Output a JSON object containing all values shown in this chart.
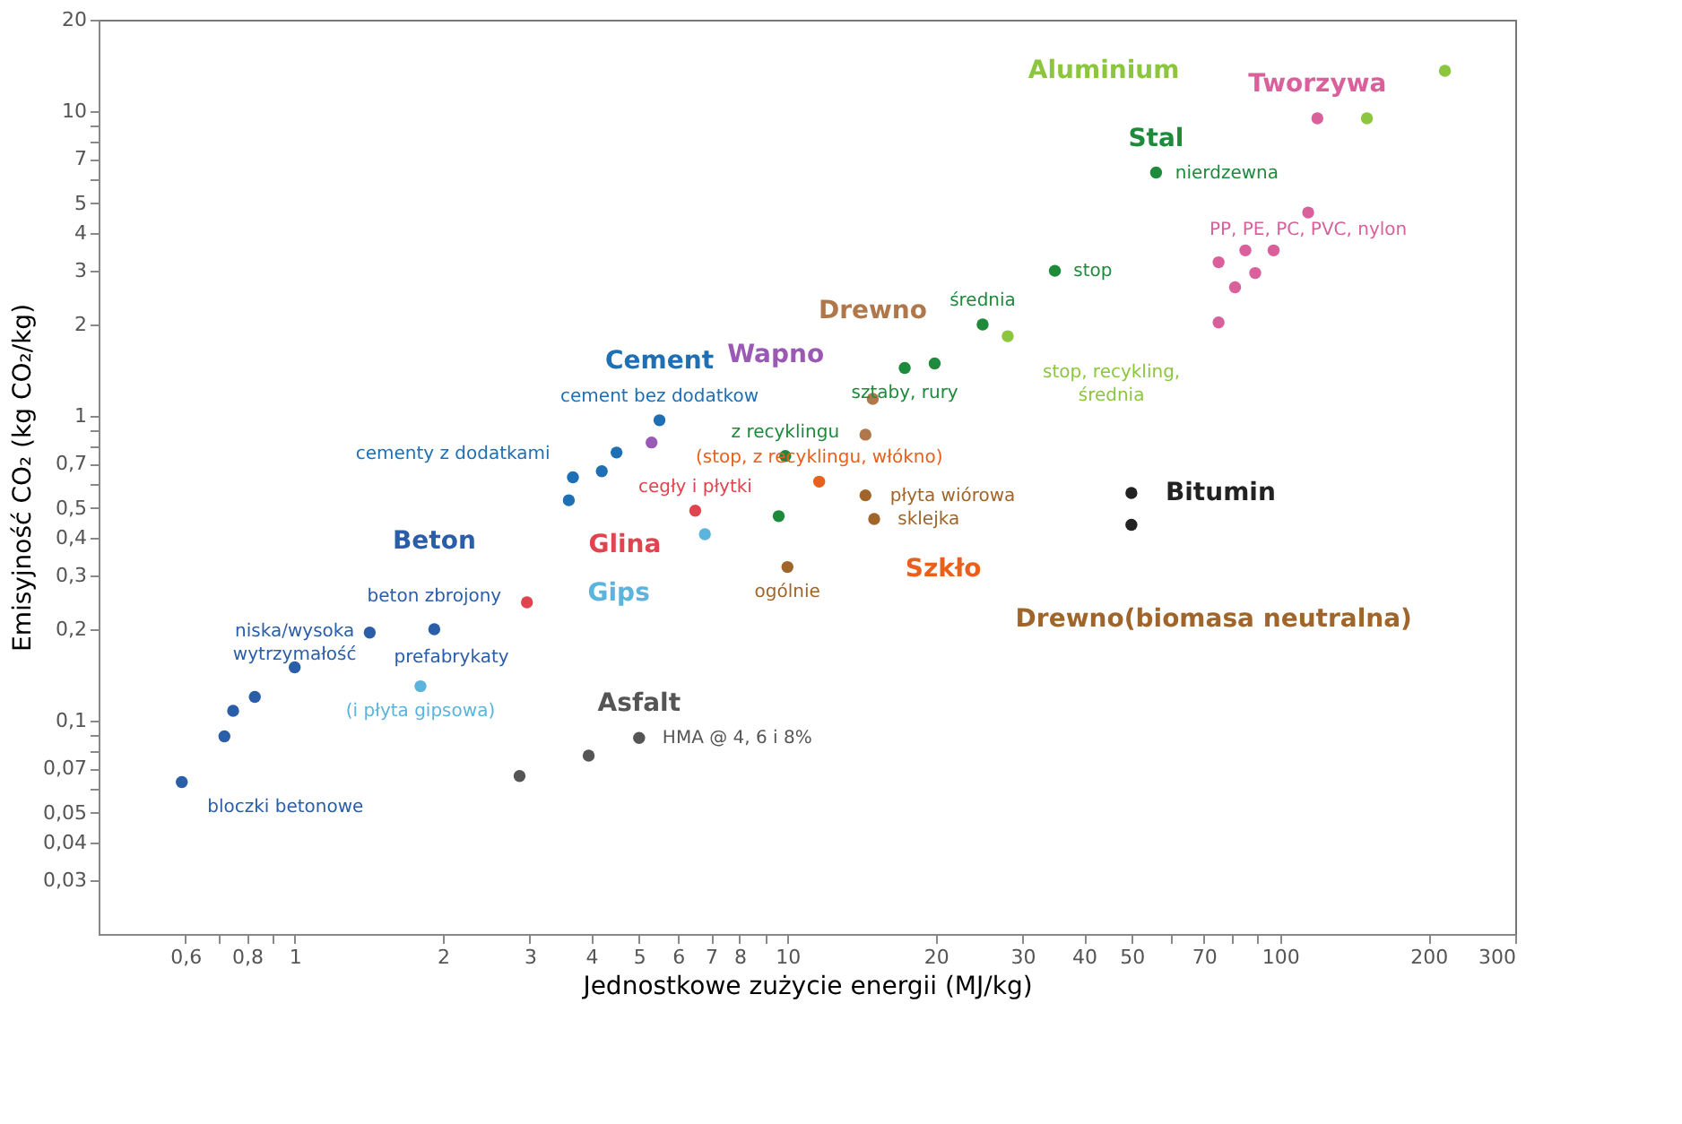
{
  "chart_data": {
    "type": "scatter",
    "xlabel": "Jednostkowe zużycie energii (MJ/kg)",
    "ylabel": "Emisyjność CO₂ (kg CO₂/kg)",
    "log": "xy",
    "grid": false,
    "legend": false,
    "marker": "circle",
    "xlim": [
      0.4,
      300
    ],
    "ylim": [
      0.02,
      20
    ],
    "xticks": [
      {
        "value": 0.6,
        "label": "0,6"
      },
      {
        "value": 0.7,
        "label": null
      },
      {
        "value": 0.8,
        "label": "0,8"
      },
      {
        "value": 0.9,
        "label": null
      },
      1,
      2,
      3,
      4,
      5,
      6,
      7,
      8,
      {
        "value": 9,
        "label": null
      },
      10,
      20,
      30,
      40,
      50,
      {
        "value": 60,
        "label": null
      },
      70,
      {
        "value": 80,
        "label": null
      },
      {
        "value": 90,
        "label": null
      },
      100,
      200,
      300
    ],
    "yticks": [
      {
        "value": 0.03,
        "label": "0,03"
      },
      {
        "value": 0.04,
        "label": "0,04"
      },
      {
        "value": 0.05,
        "label": "0,05"
      },
      {
        "value": 0.06,
        "label": null
      },
      {
        "value": 0.07,
        "label": "0,07"
      },
      {
        "value": 0.08,
        "label": null
      },
      {
        "value": 0.09,
        "label": null
      },
      {
        "value": 0.1,
        "label": "0,1"
      },
      {
        "value": 0.2,
        "label": "0,2"
      },
      {
        "value": 0.3,
        "label": "0,3"
      },
      {
        "value": 0.4,
        "label": "0,4"
      },
      {
        "value": 0.5,
        "label": "0,5"
      },
      {
        "value": 0.6,
        "label": null
      },
      {
        "value": 0.7,
        "label": "0,7"
      },
      {
        "value": 0.8,
        "label": null
      },
      {
        "value": 0.9,
        "label": null
      },
      1,
      2,
      3,
      4,
      5,
      {
        "value": 6,
        "label": null
      },
      7,
      {
        "value": 8,
        "label": null
      },
      {
        "value": 9,
        "label": null
      },
      10,
      20
    ],
    "series": [
      {
        "name": "Beton",
        "color": "#2a5ea8",
        "x": [
          0.59,
          0.72,
          0.75,
          0.83,
          1.0,
          1.42,
          1.92
        ],
        "values": [
          0.063,
          0.089,
          0.108,
          0.12,
          0.15,
          0.195,
          0.2
        ],
        "value_labels": [
          "bloczki betonowe",
          null,
          null,
          null,
          "niska/wysoka\nwytrzymałość",
          "prefabrykaty",
          "beton zbrojony"
        ]
      },
      {
        "name": "Cement",
        "color": "#1f6fb5",
        "x": [
          5.5,
          4.5,
          4.2,
          3.67,
          3.6
        ],
        "values": [
          0.97,
          0.76,
          0.66,
          0.63,
          0.53
        ],
        "value_labels": [
          "cement bez dodatkow",
          null,
          null,
          "cementy z dodatkami",
          null
        ]
      },
      {
        "name": "Wapno",
        "color": "#9b59b6",
        "x": [
          5.3
        ],
        "values": [
          0.82
        ]
      },
      {
        "name": "Glina",
        "color": "#e0454f",
        "x": [
          6.5,
          2.96
        ],
        "values": [
          0.49,
          0.245
        ],
        "value_labels": [
          "cegły i płytki",
          null
        ]
      },
      {
        "name": "Gips",
        "color": "#5ab4dc",
        "x": [
          1.8,
          6.8
        ],
        "values": [
          0.13,
          0.41
        ],
        "value_labels": [
          "(i płyta gipsowa)",
          null
        ]
      },
      {
        "name": "Asfalt",
        "color": "#555555",
        "x": [
          2.86,
          3.95,
          5.0
        ],
        "values": [
          0.066,
          0.077,
          0.088
        ],
        "value_labels": [
          null,
          null,
          "HMA @ 4, 6 i 8%"
        ]
      },
      {
        "name": "Bitumin",
        "color": "#222222",
        "x": [
          49.9,
          49.9
        ],
        "values": [
          0.56,
          0.44
        ]
      },
      {
        "name": "Stal",
        "color": "#1e8a3c",
        "x": [
          17.3,
          19.9,
          24.9,
          34.9,
          56,
          9.9,
          9.6
        ],
        "values": [
          1.44,
          1.49,
          2.0,
          3.0,
          6.3,
          0.74,
          0.47
        ],
        "value_labels": [
          "sztaby, rury",
          null,
          "średnia",
          "stop",
          "nierdzewna",
          "z recyklingu",
          null
        ]
      },
      {
        "name": "Tworzywa",
        "color": "#d9609a",
        "x": [
          75,
          85,
          89,
          81,
          97,
          75,
          114,
          119
        ],
        "values": [
          3.2,
          3.5,
          2.95,
          2.65,
          3.5,
          2.03,
          4.66,
          9.5
        ],
        "value_labels": [
          null,
          null,
          null,
          null,
          null,
          null,
          "PP, PE, PC, PVC, nylon",
          null
        ]
      },
      {
        "name": "Aluminium",
        "color": "#8cc63f",
        "x": [
          28,
          150,
          216
        ],
        "values": [
          1.83,
          9.5,
          13.6
        ],
        "value_labels": [
          "stop, recykling,\nśrednia",
          null,
          null
        ]
      },
      {
        "name": "Szkło",
        "color": "#e8601c",
        "x": [
          11.6
        ],
        "values": [
          0.61
        ],
        "value_labels": [
          "(stop, z recyklingu, włókno)"
        ]
      },
      {
        "name": "Drewno",
        "color": "#b0784a",
        "x": [
          14.9,
          14.4
        ],
        "values": [
          1.14,
          0.87
        ]
      },
      {
        "name": "Drewno(biomasa neutralna)",
        "color": "#a0652a",
        "x": [
          14.4,
          15,
          10
        ],
        "values": [
          0.55,
          0.46,
          0.32
        ],
        "value_labels": [
          "płyta wiórowa",
          "sklejka",
          "ogólnie"
        ]
      }
    ]
  }
}
